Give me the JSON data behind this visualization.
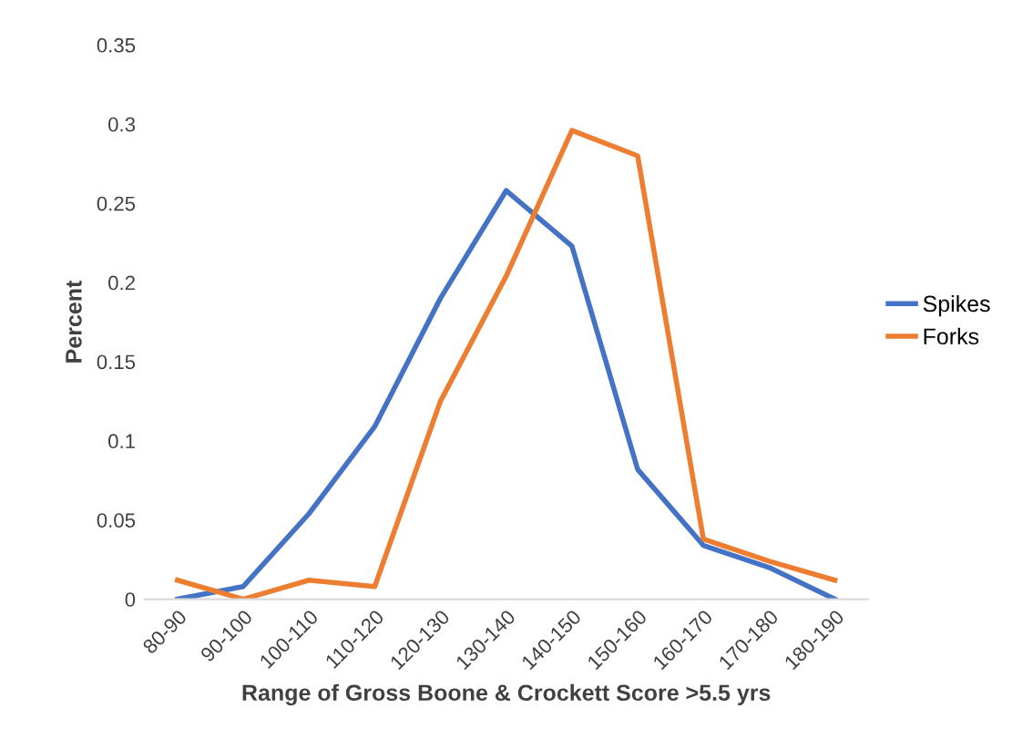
{
  "chart_data": {
    "type": "line",
    "xlabel": "Range of Gross Boone & Crockett Score >5.5 yrs",
    "ylabel": "Percent",
    "categories": [
      "80-90",
      "90-100",
      "100-110",
      "110-120",
      "120-130",
      "130-140",
      "140-150",
      "150-160",
      "160-170",
      "170-180",
      "180-190"
    ],
    "series": [
      {
        "name": "Spikes",
        "color": "#4472c4",
        "values": [
          0,
          0.008,
          0.054,
          0.109,
          0.19,
          0.258,
          0.223,
          0.082,
          0.034,
          0.02,
          0
        ]
      },
      {
        "name": "Forks",
        "color": "#ed7d31",
        "values": [
          0.012,
          0.0,
          0.012,
          0.008,
          0.125,
          0.204,
          0.296,
          0.28,
          0.038,
          0.024,
          0.012
        ]
      }
    ],
    "ylim": [
      0,
      0.35
    ],
    "yticks": [
      0,
      0.05,
      0.1,
      0.15,
      0.2,
      0.25,
      0.3,
      0.35
    ],
    "grid": false,
    "legend": "right",
    "marker": "none",
    "line_style": "solid"
  }
}
